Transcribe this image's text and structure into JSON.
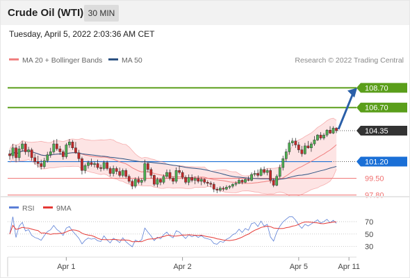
{
  "header": {
    "title": "Crude Oil (WTI)",
    "timeframe": "30 MIN"
  },
  "timestamp": "Tuesday, April 5, 2022 2:03:36 AM CET",
  "colors": {
    "bollinger": "#f08080",
    "band_fill": "#fde4e4",
    "ma50": "#2c5282",
    "candle_up": "#4caf50",
    "candle_down": "#c62828",
    "target": "#5a9e1a",
    "pivot": "#1a6fd6",
    "support": "#f07070",
    "current": "#333333",
    "arrow": "#2a5fa8",
    "rsi": "#5b7fd6",
    "rsi_ma": "#e53935"
  },
  "chart_data": [
    {
      "type": "candlestick",
      "title": "Crude Oil (WTI)",
      "timeframe": "30 MIN",
      "legend": [
        {
          "name": "MA 20 + Bollinger Bands",
          "color": "#f08080"
        },
        {
          "name": "MA 50",
          "color": "#2c5282"
        }
      ],
      "credit": "Research © 2022 Trading Central",
      "ylim": [
        97.0,
        110.0
      ],
      "x_ticks": [
        {
          "label": "Apr 1",
          "i": 18
        },
        {
          "label": "Apr 2",
          "i": 55
        },
        {
          "label": "Apr 5",
          "i": 92
        },
        {
          "label": "Apr 11",
          "i": 108
        }
      ],
      "levels": [
        {
          "value": 108.7,
          "label": "108.70",
          "kind": "target",
          "style": "line-box"
        },
        {
          "value": 106.7,
          "label": "106.70",
          "kind": "target",
          "style": "line-box"
        },
        {
          "value": 104.35,
          "label": "104.35",
          "kind": "current",
          "style": "dotted-box"
        },
        {
          "value": 101.2,
          "label": "101.20",
          "kind": "pivot",
          "style": "line-box"
        },
        {
          "value": 99.5,
          "label": "99.50",
          "kind": "support",
          "style": "line-text"
        },
        {
          "value": 97.8,
          "label": "97.80",
          "kind": "support",
          "style": "line-text"
        }
      ],
      "ohlc": [
        [
          102.0,
          102.4,
          101.4,
          101.8
        ],
        [
          101.8,
          103.0,
          101.5,
          102.6
        ],
        [
          102.6,
          102.9,
          101.2,
          101.6
        ],
        [
          101.6,
          102.8,
          101.3,
          102.5
        ],
        [
          102.5,
          103.3,
          102.2,
          103.0
        ],
        [
          103.0,
          103.2,
          101.9,
          102.2
        ],
        [
          102.2,
          102.7,
          101.7,
          102.4
        ],
        [
          102.4,
          102.6,
          101.3,
          101.6
        ],
        [
          101.6,
          102.0,
          100.9,
          101.2
        ],
        [
          101.2,
          101.8,
          100.6,
          101.0
        ],
        [
          101.0,
          101.4,
          100.4,
          100.7
        ],
        [
          100.7,
          101.6,
          100.5,
          101.3
        ],
        [
          101.3,
          102.2,
          101.1,
          101.9
        ],
        [
          101.9,
          102.6,
          101.6,
          102.2
        ],
        [
          102.2,
          103.4,
          102.0,
          103.0
        ],
        [
          103.0,
          103.5,
          102.3,
          102.5
        ],
        [
          102.5,
          102.8,
          101.9,
          102.2
        ],
        [
          102.2,
          102.4,
          101.4,
          101.7
        ],
        [
          101.7,
          103.1,
          101.5,
          102.9
        ],
        [
          102.9,
          103.5,
          102.6,
          103.2
        ],
        [
          103.2,
          103.4,
          102.4,
          102.6
        ],
        [
          102.6,
          103.2,
          102.0,
          102.1
        ],
        [
          102.1,
          102.4,
          101.2,
          101.5
        ],
        [
          101.5,
          101.7,
          99.9,
          100.3
        ],
        [
          100.3,
          101.0,
          100.0,
          100.8
        ],
        [
          100.8,
          101.3,
          100.5,
          101.1
        ],
        [
          101.1,
          101.5,
          100.7,
          100.9
        ],
        [
          100.9,
          101.2,
          100.6,
          101.0
        ],
        [
          101.0,
          101.4,
          100.4,
          100.6
        ],
        [
          100.6,
          100.9,
          100.2,
          100.5
        ],
        [
          100.5,
          101.3,
          100.3,
          101.1
        ],
        [
          101.1,
          101.3,
          100.3,
          100.5
        ],
        [
          100.5,
          100.7,
          99.7,
          100.0
        ],
        [
          100.0,
          100.8,
          99.7,
          100.5
        ],
        [
          100.5,
          100.7,
          99.9,
          100.2
        ],
        [
          100.2,
          100.6,
          99.6,
          99.8
        ],
        [
          99.8,
          100.5,
          99.6,
          100.3
        ],
        [
          100.3,
          100.5,
          99.5,
          99.7
        ],
        [
          99.7,
          99.9,
          99.0,
          99.2
        ],
        [
          99.2,
          99.4,
          98.4,
          98.7
        ],
        [
          98.7,
          99.6,
          98.5,
          99.4
        ],
        [
          99.4,
          99.7,
          98.9,
          99.1
        ],
        [
          99.1,
          99.5,
          98.8,
          99.3
        ],
        [
          99.3,
          101.4,
          99.1,
          101.0
        ],
        [
          101.0,
          101.2,
          100.1,
          100.4
        ],
        [
          100.4,
          100.6,
          99.5,
          99.8
        ],
        [
          99.8,
          99.9,
          98.7,
          98.9
        ],
        [
          98.9,
          99.6,
          98.6,
          99.4
        ],
        [
          99.4,
          99.5,
          98.8,
          99.1
        ],
        [
          99.1,
          99.9,
          98.9,
          99.7
        ],
        [
          99.7,
          100.4,
          99.5,
          100.1
        ],
        [
          100.1,
          100.4,
          99.3,
          99.5
        ],
        [
          99.5,
          99.7,
          98.9,
          99.2
        ],
        [
          99.2,
          100.6,
          99.0,
          100.3
        ],
        [
          100.3,
          100.8,
          99.9,
          100.1
        ],
        [
          100.1,
          100.3,
          99.4,
          99.6
        ],
        [
          99.6,
          99.8,
          98.9,
          99.1
        ],
        [
          99.1,
          99.9,
          98.8,
          99.6
        ],
        [
          99.6,
          99.9,
          99.1,
          99.3
        ],
        [
          99.3,
          99.7,
          98.9,
          99.5
        ],
        [
          99.5,
          99.8,
          99.0,
          99.2
        ],
        [
          99.2,
          99.6,
          98.8,
          99.4
        ],
        [
          99.4,
          99.5,
          98.9,
          99.1
        ],
        [
          99.1,
          99.3,
          98.7,
          99.0
        ],
        [
          99.0,
          99.2,
          98.6,
          98.9
        ],
        [
          98.9,
          99.1,
          98.1,
          98.4
        ],
        [
          98.4,
          98.6,
          98.0,
          98.3
        ],
        [
          98.3,
          98.7,
          98.1,
          98.5
        ],
        [
          98.5,
          98.7,
          98.2,
          98.4
        ],
        [
          98.4,
          98.8,
          98.3,
          98.6
        ],
        [
          98.6,
          98.8,
          98.4,
          98.7
        ],
        [
          98.7,
          99.0,
          98.5,
          98.9
        ],
        [
          98.9,
          99.2,
          98.7,
          99.0
        ],
        [
          99.0,
          99.5,
          98.9,
          99.3
        ],
        [
          99.3,
          99.4,
          98.9,
          99.1
        ],
        [
          99.1,
          99.5,
          99.0,
          99.4
        ],
        [
          99.4,
          99.7,
          99.2,
          99.3
        ],
        [
          99.3,
          100.1,
          99.2,
          99.9
        ],
        [
          99.9,
          100.3,
          99.7,
          100.0
        ],
        [
          100.0,
          100.4,
          99.6,
          99.8
        ],
        [
          99.8,
          100.6,
          99.7,
          100.4
        ],
        [
          100.4,
          100.7,
          99.9,
          100.1
        ],
        [
          100.1,
          100.5,
          99.8,
          100.3
        ],
        [
          100.3,
          100.5,
          99.0,
          99.3
        ],
        [
          99.3,
          99.5,
          98.6,
          98.8
        ],
        [
          98.8,
          99.9,
          98.7,
          99.7
        ],
        [
          99.7,
          100.9,
          99.5,
          100.6
        ],
        [
          100.6,
          101.8,
          100.3,
          101.5
        ],
        [
          101.5,
          102.5,
          101.2,
          102.2
        ],
        [
          102.2,
          103.4,
          101.9,
          103.1
        ],
        [
          103.1,
          103.6,
          102.8,
          103.3
        ],
        [
          103.3,
          103.6,
          102.6,
          102.9
        ],
        [
          102.9,
          103.2,
          102.1,
          102.4
        ],
        [
          102.4,
          102.8,
          101.7,
          102.0
        ],
        [
          102.0,
          103.1,
          101.9,
          102.8
        ],
        [
          102.8,
          103.3,
          102.5,
          102.6
        ],
        [
          102.6,
          103.2,
          102.2,
          103.0
        ],
        [
          103.0,
          103.8,
          102.8,
          103.4
        ],
        [
          103.4,
          104.0,
          103.3,
          103.9
        ],
        [
          103.9,
          104.2,
          103.4,
          103.6
        ],
        [
          103.6,
          104.1,
          103.4,
          103.9
        ],
        [
          103.9,
          104.5,
          103.7,
          104.4
        ],
        [
          104.4,
          104.8,
          104.0,
          104.1
        ],
        [
          104.1,
          104.8,
          104.0,
          104.6
        ],
        [
          104.6,
          104.7,
          104.1,
          104.35
        ]
      ],
      "rsi_axis": {
        "ylim": [
          15,
          80
        ],
        "ticks": [
          70,
          50,
          30
        ]
      },
      "rsi_legend": [
        {
          "name": "RSI",
          "color": "#5b7fd6"
        },
        {
          "name": "9MA",
          "color": "#e53935"
        }
      ]
    }
  ]
}
